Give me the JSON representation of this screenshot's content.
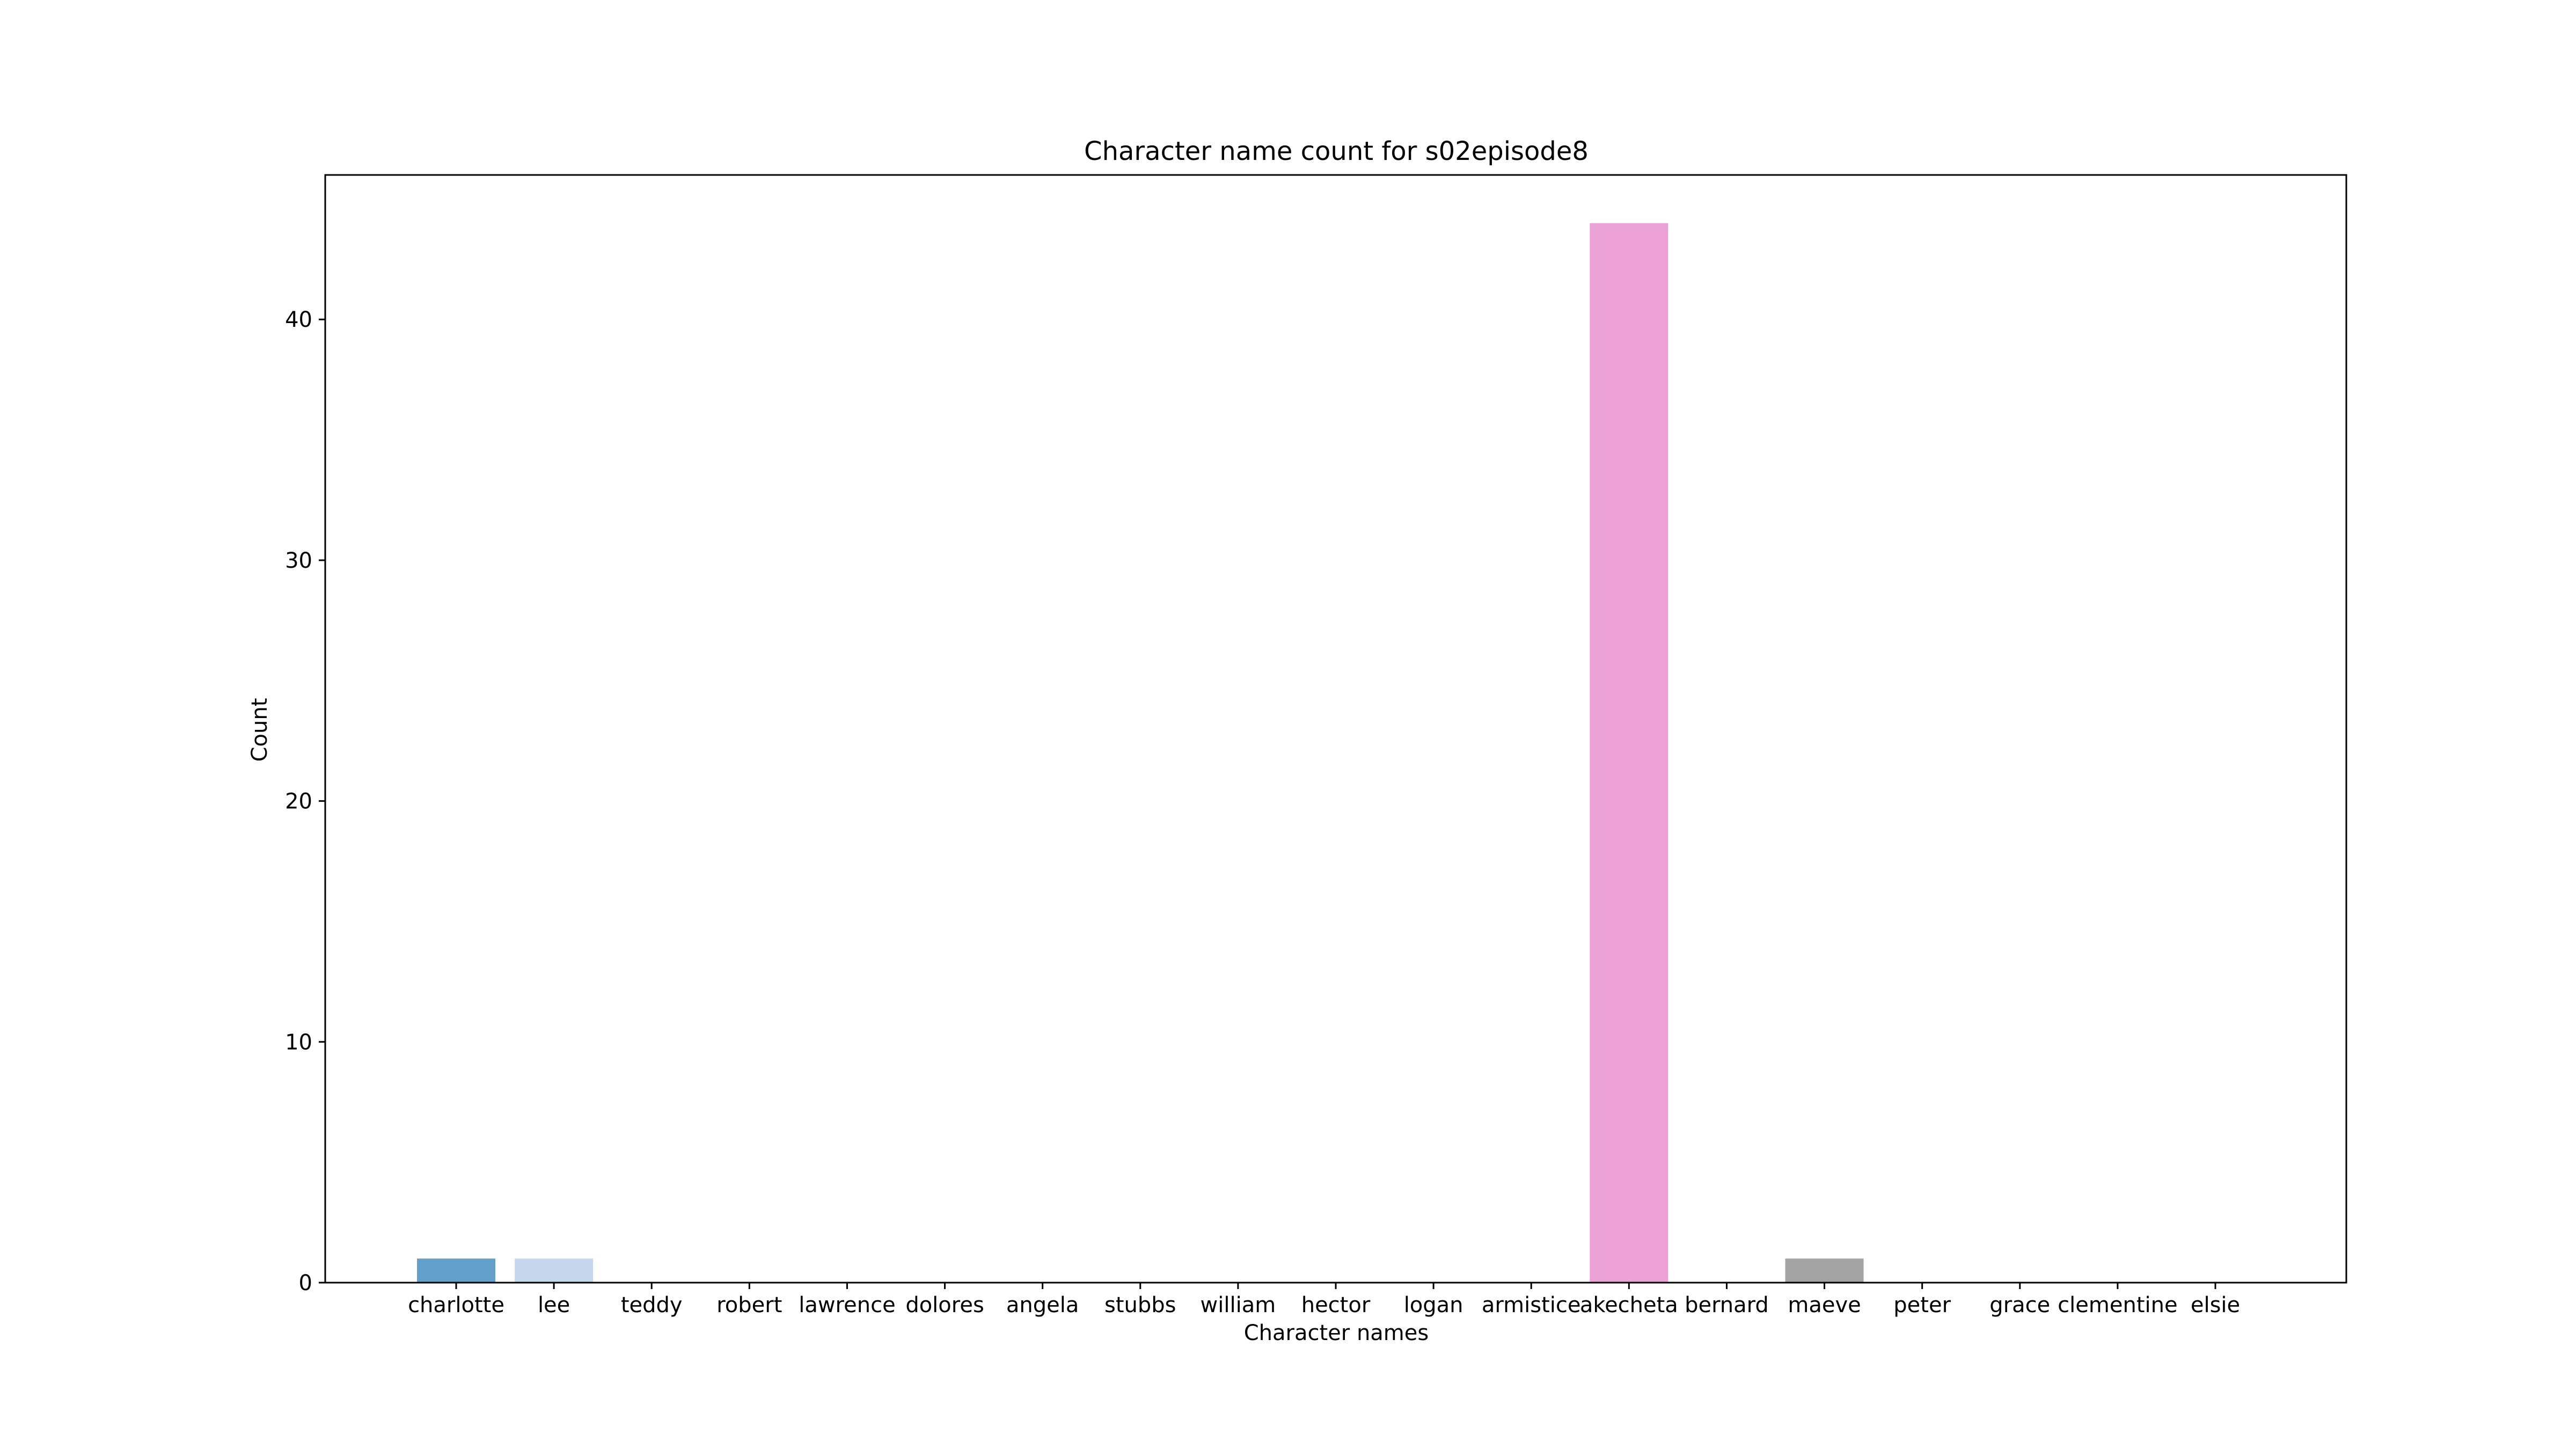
{
  "chart_data": {
    "type": "bar",
    "title": "Character name count for s02episode8",
    "xlabel": "Character names",
    "ylabel": "Count",
    "ylim": [
      0,
      46
    ],
    "yticks": [
      0,
      10,
      20,
      30,
      40
    ],
    "categories": [
      "charlotte",
      "lee",
      "teddy",
      "robert",
      "lawrence",
      "dolores",
      "angela",
      "stubbs",
      "william",
      "hector",
      "logan",
      "armistice",
      "akecheta",
      "bernard",
      "maeve",
      "peter",
      "grace",
      "clementine",
      "elsie"
    ],
    "values": [
      1,
      1,
      0,
      0,
      0,
      0,
      0,
      0,
      0,
      0,
      0,
      0,
      44,
      0,
      1,
      0,
      0,
      0,
      0
    ],
    "colors": [
      "#62a0cb",
      "#c6d7ed",
      "#ff9f4a",
      "#ffc188",
      "#4faf4a",
      "#9fd98e",
      "#d96364",
      "#ff9e9b",
      "#a886c6",
      "#c8b9d9",
      "#9d776f",
      "#c9a4a0",
      "#eba1d6",
      "#f7c6dd",
      "#a3a3a3",
      "#d6d6d6",
      "#cfcf4f",
      "#e0e0a0",
      "#4cc9d7"
    ],
    "grid": false,
    "legend": "none"
  }
}
